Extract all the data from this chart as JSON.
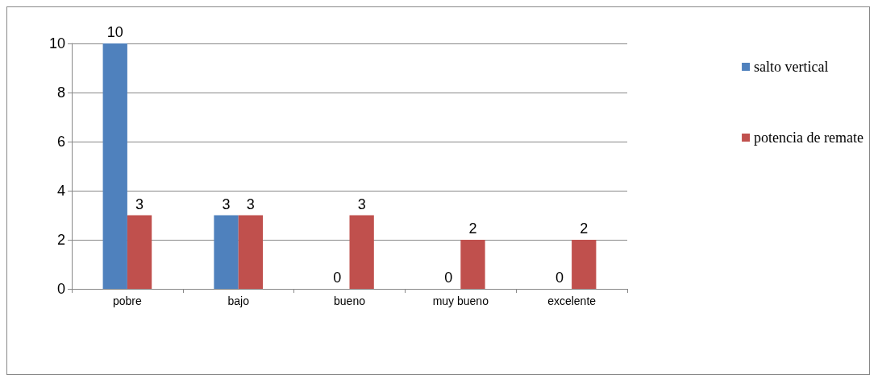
{
  "chart_data": {
    "type": "bar",
    "categories": [
      "pobre",
      "bajo",
      "bueno",
      "muy bueno",
      "excelente"
    ],
    "series": [
      {
        "name": "salto vertical",
        "color": "#4f81bd",
        "values": [
          10,
          3,
          0,
          0,
          0
        ]
      },
      {
        "name": "potencia de remate",
        "color": "#c0504d",
        "values": [
          3,
          3,
          3,
          2,
          2
        ]
      }
    ],
    "ylim": [
      0,
      10
    ],
    "yticks": [
      0,
      2,
      4,
      6,
      8,
      10
    ],
    "grid": "y",
    "legend": "right",
    "data_labels": true
  }
}
